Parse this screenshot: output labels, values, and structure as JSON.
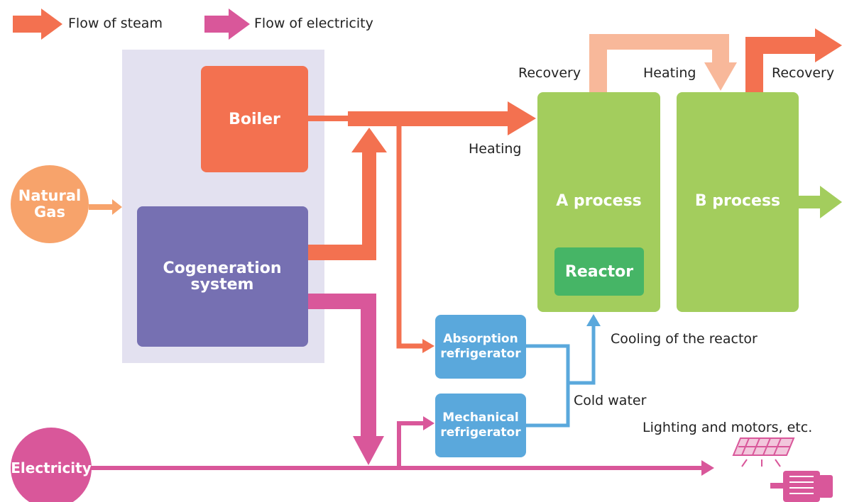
{
  "legend": [
    "Flow of steam",
    "Flow of electricity"
  ],
  "nodes": {
    "boiler": "Boiler",
    "natural_gas": "Natural Gas",
    "cogeneration": "Cogeneration system",
    "electricity": "Electricity",
    "a_process": "A process",
    "b_process": "B process",
    "reactor": "Reactor",
    "absorption": "Absorption refrigerator",
    "mechanical": "Mechanical refrigerator"
  },
  "labels": {
    "recovery_a": "Recovery",
    "heating_top": "Heating",
    "recovery_b": "Recovery",
    "heating_left": "Heating",
    "cooling": "Cooling of the reactor",
    "cold_water": "Cold water",
    "lighting": "Lighting and motors, etc."
  }
}
